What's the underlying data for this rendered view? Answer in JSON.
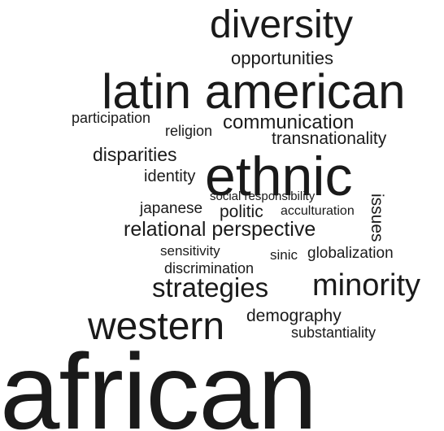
{
  "word_cloud": {
    "text_color": "#1a1a1a",
    "background": "#ffffff",
    "words": [
      {
        "text": "diversity",
        "orientation": "horizontal"
      },
      {
        "text": "opportunities",
        "orientation": "horizontal"
      },
      {
        "text": "latin american",
        "orientation": "horizontal"
      },
      {
        "text": "participation",
        "orientation": "horizontal"
      },
      {
        "text": "religion",
        "orientation": "horizontal"
      },
      {
        "text": "communication",
        "orientation": "horizontal"
      },
      {
        "text": "transnationality",
        "orientation": "horizontal"
      },
      {
        "text": "disparities",
        "orientation": "horizontal"
      },
      {
        "text": "identity",
        "orientation": "horizontal"
      },
      {
        "text": "ethnic",
        "orientation": "horizontal"
      },
      {
        "text": "social responsibility",
        "orientation": "horizontal"
      },
      {
        "text": "issues",
        "orientation": "vertical"
      },
      {
        "text": "japanese",
        "orientation": "horizontal"
      },
      {
        "text": "politic",
        "orientation": "horizontal"
      },
      {
        "text": "acculturation",
        "orientation": "horizontal"
      },
      {
        "text": "relational perspective",
        "orientation": "horizontal"
      },
      {
        "text": "sensitivity",
        "orientation": "horizontal"
      },
      {
        "text": "sinic",
        "orientation": "horizontal"
      },
      {
        "text": "globalization",
        "orientation": "horizontal"
      },
      {
        "text": "discrimination",
        "orientation": "horizontal"
      },
      {
        "text": "strategies",
        "orientation": "horizontal"
      },
      {
        "text": "minority",
        "orientation": "horizontal"
      },
      {
        "text": "western",
        "orientation": "horizontal"
      },
      {
        "text": "demography",
        "orientation": "horizontal"
      },
      {
        "text": "substantiality",
        "orientation": "horizontal"
      },
      {
        "text": "african",
        "orientation": "horizontal"
      }
    ]
  }
}
